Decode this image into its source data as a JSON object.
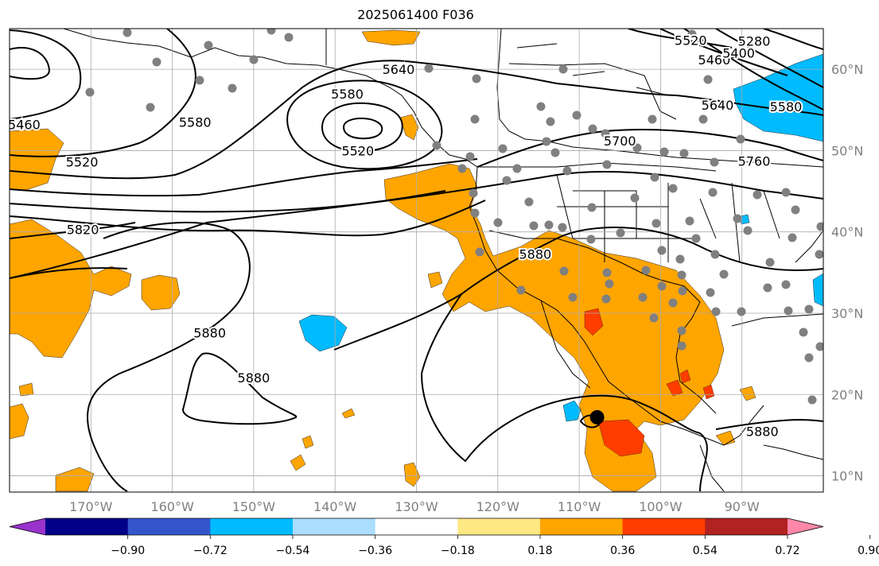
{
  "title": "2025061400 F036",
  "map": {
    "lon_range": [
      -180,
      -80
    ],
    "lat_range": [
      8,
      65
    ],
    "lon_ticks": [
      {
        "value": -170,
        "label": "170°W"
      },
      {
        "value": -160,
        "label": "160°W"
      },
      {
        "value": -150,
        "label": "150°W"
      },
      {
        "value": -140,
        "label": "140°W"
      },
      {
        "value": -130,
        "label": "130°W"
      },
      {
        "value": -120,
        "label": "120°W"
      },
      {
        "value": -110,
        "label": "110°W"
      },
      {
        "value": -100,
        "label": "100°W"
      },
      {
        "value": -90,
        "label": "90°W"
      }
    ],
    "lat_ticks": [
      {
        "value": 10,
        "label": "10°N"
      },
      {
        "value": 20,
        "label": "20°N"
      },
      {
        "value": 30,
        "label": "30°N"
      },
      {
        "value": 40,
        "label": "40°N"
      },
      {
        "value": 50,
        "label": "50°N"
      },
      {
        "value": 60,
        "label": "60°N"
      }
    ],
    "contour_labels": [
      {
        "text": "5460",
        "lon": -178.2,
        "lat": 53.2
      },
      {
        "text": "5520",
        "lon": -171.1,
        "lat": 48.6
      },
      {
        "text": "5580",
        "lon": -157.2,
        "lat": 53.5
      },
      {
        "text": "5580",
        "lon": -138.5,
        "lat": 57.0
      },
      {
        "text": "5520",
        "lon": -137.2,
        "lat": 50.0
      },
      {
        "text": "5640",
        "lon": -132.2,
        "lat": 60.0
      },
      {
        "text": "5520",
        "lon": -96.3,
        "lat": 63.6
      },
      {
        "text": "5460",
        "lon": -93.4,
        "lat": 61.2
      },
      {
        "text": "5400",
        "lon": -90.4,
        "lat": 62.0
      },
      {
        "text": "5280",
        "lon": -88.5,
        "lat": 63.5
      },
      {
        "text": "5640",
        "lon": -93.0,
        "lat": 55.6
      },
      {
        "text": "5580",
        "lon": -84.6,
        "lat": 55.4
      },
      {
        "text": "5700",
        "lon": -105.0,
        "lat": 51.2
      },
      {
        "text": "5760",
        "lon": -88.5,
        "lat": 48.7
      },
      {
        "text": "5820",
        "lon": -171.0,
        "lat": 40.3
      },
      {
        "text": "5880",
        "lon": -115.4,
        "lat": 37.3
      },
      {
        "text": "5880",
        "lon": -155.4,
        "lat": 27.6
      },
      {
        "text": "5880",
        "lon": -150.0,
        "lat": 22.1
      },
      {
        "text": "5880",
        "lon": -87.5,
        "lat": 15.5
      }
    ],
    "storm_marker": {
      "lon": -107.8,
      "lat": 17.2
    }
  },
  "colorbar": {
    "colors": [
      "#9933cc",
      "#000088",
      "#3355cc",
      "#00bbff",
      "#aaddff",
      "#ffffff",
      "#ffe784",
      "#ffa500",
      "#ff3d00",
      "#b22222",
      "#ff88aa"
    ],
    "tick_labels": [
      "−0.90",
      "−0.72",
      "−0.54",
      "−0.36",
      "−0.18",
      "0.18",
      "0.36",
      "0.54",
      "0.72",
      "0.90"
    ]
  }
}
